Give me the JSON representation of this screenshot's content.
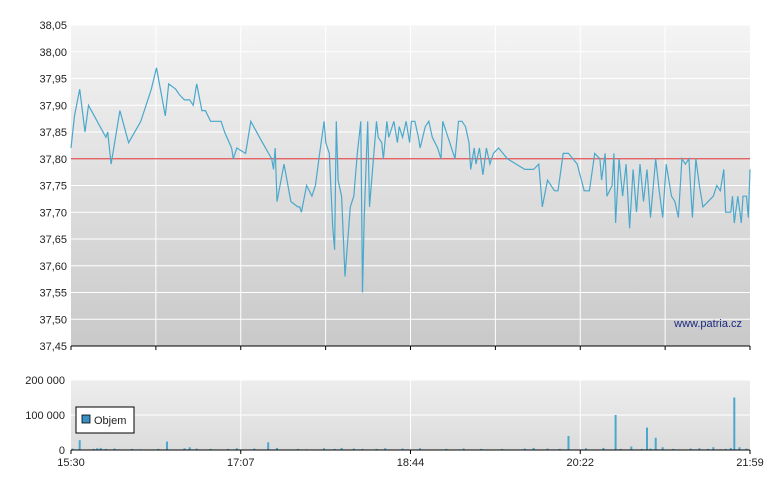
{
  "watermark": "www.patria.cz",
  "colors": {
    "price_line": "#4aa8cc",
    "reference_line": "#e05050",
    "volume_bar": "#4aa8cc",
    "legend_swatch": "#3b8fc4",
    "plot_bg_top": "#f4f4f4",
    "plot_bg_bottom": "#c9c9c9",
    "grid": "#ffffff"
  },
  "chart_data": [
    {
      "type": "line",
      "title": "",
      "xlabel": "",
      "ylabel": "",
      "ylim": [
        37.45,
        38.05
      ],
      "y_ticks": [
        "38,05",
        "38,00",
        "37,95",
        "37,90",
        "37,85",
        "37,80",
        "37,75",
        "37,70",
        "37,65",
        "37,60",
        "37,55",
        "37,50",
        "37,45"
      ],
      "x_range_minutes": [
        "15:30",
        "21:59"
      ],
      "reference_line": 37.8,
      "grid": true,
      "points": [
        [
          "15:30",
          37.82
        ],
        [
          "15:32",
          37.88
        ],
        [
          "15:35",
          37.93
        ],
        [
          "15:38",
          37.85
        ],
        [
          "15:40",
          37.9
        ],
        [
          "15:45",
          37.87
        ],
        [
          "15:50",
          37.84
        ],
        [
          "15:51",
          37.85
        ],
        [
          "15:53",
          37.79
        ],
        [
          "15:58",
          37.89
        ],
        [
          "16:03",
          37.83
        ],
        [
          "16:10",
          37.87
        ],
        [
          "16:16",
          37.93
        ],
        [
          "16:19",
          37.97
        ],
        [
          "16:24",
          37.88
        ],
        [
          "16:26",
          37.94
        ],
        [
          "16:30",
          37.93
        ],
        [
          "16:32",
          37.92
        ],
        [
          "16:35",
          37.91
        ],
        [
          "16:38",
          37.91
        ],
        [
          "16:40",
          37.9
        ],
        [
          "16:42",
          37.94
        ],
        [
          "16:45",
          37.89
        ],
        [
          "16:47",
          37.89
        ],
        [
          "16:50",
          37.87
        ],
        [
          "16:56",
          37.87
        ],
        [
          "16:58",
          37.85
        ],
        [
          "17:02",
          37.82
        ],
        [
          "17:03",
          37.8
        ],
        [
          "17:05",
          37.82
        ],
        [
          "17:10",
          37.81
        ],
        [
          "17:13",
          37.87
        ],
        [
          "17:18",
          37.84
        ],
        [
          "17:25",
          37.8
        ],
        [
          "17:26",
          37.78
        ],
        [
          "17:27",
          37.82
        ],
        [
          "17:28",
          37.72
        ],
        [
          "17:32",
          37.79
        ],
        [
          "17:36",
          37.72
        ],
        [
          "17:40",
          37.71
        ],
        [
          "17:41",
          37.71
        ],
        [
          "17:42",
          37.7
        ],
        [
          "17:45",
          37.75
        ],
        [
          "17:48",
          37.73
        ],
        [
          "17:50",
          37.75
        ],
        [
          "17:52",
          37.8
        ],
        [
          "17:55",
          37.87
        ],
        [
          "17:56",
          37.83
        ],
        [
          "17:58",
          37.81
        ],
        [
          "18:00",
          37.67
        ],
        [
          "18:01",
          37.63
        ],
        [
          "18:02",
          37.87
        ],
        [
          "18:03",
          37.76
        ],
        [
          "18:05",
          37.73
        ],
        [
          "18:07",
          37.58
        ],
        [
          "18:10",
          37.71
        ],
        [
          "18:12",
          37.73
        ],
        [
          "18:14",
          37.81
        ],
        [
          "18:16",
          37.87
        ],
        [
          "18:17",
          37.55
        ],
        [
          "18:18",
          37.69
        ],
        [
          "18:20",
          37.87
        ],
        [
          "18:21",
          37.71
        ],
        [
          "18:23",
          37.79
        ],
        [
          "18:25",
          37.87
        ],
        [
          "18:26",
          37.84
        ],
        [
          "18:28",
          37.83
        ],
        [
          "18:29",
          37.8
        ],
        [
          "18:31",
          37.87
        ],
        [
          "18:32",
          37.84
        ],
        [
          "18:34",
          37.86
        ],
        [
          "18:35",
          37.87
        ],
        [
          "18:37",
          37.83
        ],
        [
          "18:38",
          37.86
        ],
        [
          "18:40",
          37.84
        ],
        [
          "18:42",
          37.87
        ],
        [
          "18:44",
          37.83
        ],
        [
          "18:45",
          37.87
        ],
        [
          "18:47",
          37.87
        ],
        [
          "18:49",
          37.84
        ],
        [
          "18:50",
          37.82
        ],
        [
          "18:53",
          37.86
        ],
        [
          "18:55",
          37.87
        ],
        [
          "18:57",
          37.84
        ],
        [
          "19:00",
          37.82
        ],
        [
          "19:02",
          37.8
        ],
        [
          "19:03",
          37.87
        ],
        [
          "19:05",
          37.85
        ],
        [
          "19:10",
          37.8
        ],
        [
          "19:12",
          37.87
        ],
        [
          "19:14",
          37.87
        ],
        [
          "19:16",
          37.86
        ],
        [
          "19:18",
          37.83
        ],
        [
          "19:19",
          37.78
        ],
        [
          "19:21",
          37.82
        ],
        [
          "19:22",
          37.79
        ],
        [
          "19:24",
          37.82
        ],
        [
          "19:26",
          37.77
        ],
        [
          "19:28",
          37.82
        ],
        [
          "19:30",
          37.79
        ],
        [
          "19:32",
          37.81
        ],
        [
          "19:35",
          37.82
        ],
        [
          "19:40",
          37.8
        ],
        [
          "19:45",
          37.79
        ],
        [
          "19:50",
          37.78
        ],
        [
          "19:55",
          37.78
        ],
        [
          "19:58",
          37.79
        ],
        [
          "20:00",
          37.71
        ],
        [
          "20:03",
          37.76
        ],
        [
          "20:07",
          37.74
        ],
        [
          "20:09",
          37.74
        ],
        [
          "20:12",
          37.81
        ],
        [
          "20:15",
          37.81
        ],
        [
          "20:20",
          37.79
        ],
        [
          "20:24",
          37.74
        ],
        [
          "20:27",
          37.74
        ],
        [
          "20:30",
          37.81
        ],
        [
          "20:33",
          37.8
        ],
        [
          "20:34",
          37.76
        ],
        [
          "20:36",
          37.81
        ],
        [
          "20:37",
          37.73
        ],
        [
          "20:40",
          37.75
        ],
        [
          "20:41",
          37.81
        ],
        [
          "20:42",
          37.68
        ],
        [
          "20:44",
          37.8
        ],
        [
          "20:46",
          37.73
        ],
        [
          "20:48",
          37.79
        ],
        [
          "20:50",
          37.67
        ],
        [
          "20:52",
          37.78
        ],
        [
          "20:54",
          37.7
        ],
        [
          "20:56",
          37.79
        ],
        [
          "20:58",
          37.72
        ],
        [
          "21:00",
          37.78
        ],
        [
          "21:02",
          37.69
        ],
        [
          "21:05",
          37.8
        ],
        [
          "21:07",
          37.74
        ],
        [
          "21:09",
          37.69
        ],
        [
          "21:11",
          37.79
        ],
        [
          "21:14",
          37.73
        ],
        [
          "21:16",
          37.72
        ],
        [
          "21:18",
          37.69
        ],
        [
          "21:20",
          37.8
        ],
        [
          "21:22",
          37.79
        ],
        [
          "21:24",
          37.8
        ],
        [
          "21:26",
          37.69
        ],
        [
          "21:28",
          37.8
        ],
        [
          "21:30",
          37.75
        ],
        [
          "21:32",
          37.71
        ],
        [
          "21:35",
          37.72
        ],
        [
          "21:38",
          37.73
        ],
        [
          "21:40",
          37.75
        ],
        [
          "21:42",
          37.74
        ],
        [
          "21:44",
          37.78
        ],
        [
          "21:45",
          37.7
        ],
        [
          "21:48",
          37.7
        ],
        [
          "21:49",
          37.73
        ],
        [
          "21:50",
          37.68
        ],
        [
          "21:52",
          37.73
        ],
        [
          "21:54",
          37.68
        ],
        [
          "21:55",
          37.73
        ],
        [
          "21:57",
          37.73
        ],
        [
          "21:58",
          37.69
        ],
        [
          "21:59",
          37.78
        ]
      ]
    },
    {
      "type": "bar",
      "title": "",
      "xlabel": "",
      "ylabel": "",
      "ylim": [
        0,
        200000
      ],
      "y_ticks": [
        "200 000",
        "100 000",
        "0"
      ],
      "x_tick_labels": [
        "15:30",
        "17:07",
        "18:44",
        "20:22",
        "21:59"
      ],
      "x_range_minutes": [
        "15:30",
        "21:59"
      ],
      "grid": true,
      "legend": {
        "label": "Objem",
        "placement": "left"
      },
      "bars": [
        [
          "15:31",
          4000
        ],
        [
          "15:35",
          28000
        ],
        [
          "15:43",
          3000
        ],
        [
          "15:45",
          5000
        ],
        [
          "15:47",
          6000
        ],
        [
          "15:50",
          3000
        ],
        [
          "15:55",
          4000
        ],
        [
          "16:05",
          3000
        ],
        [
          "16:10",
          2000
        ],
        [
          "16:20",
          3000
        ],
        [
          "16:25",
          24000
        ],
        [
          "16:35",
          5000
        ],
        [
          "16:38",
          8000
        ],
        [
          "16:42",
          4000
        ],
        [
          "16:50",
          3000
        ],
        [
          "17:00",
          3000
        ],
        [
          "17:05",
          5000
        ],
        [
          "17:15",
          4000
        ],
        [
          "17:23",
          22000
        ],
        [
          "17:28",
          6000
        ],
        [
          "17:40",
          3000
        ],
        [
          "17:45",
          2000
        ],
        [
          "17:55",
          5000
        ],
        [
          "18:01",
          3000
        ],
        [
          "18:05",
          6000
        ],
        [
          "18:12",
          4000
        ],
        [
          "18:17",
          3000
        ],
        [
          "18:25",
          3000
        ],
        [
          "18:30",
          5000
        ],
        [
          "18:40",
          4000
        ],
        [
          "18:50",
          5000
        ],
        [
          "19:05",
          3000
        ],
        [
          "19:15",
          4000
        ],
        [
          "19:25",
          3000
        ],
        [
          "19:37",
          3000
        ],
        [
          "19:50",
          4000
        ],
        [
          "19:55",
          6000
        ],
        [
          "20:03",
          4000
        ],
        [
          "20:10",
          3000
        ],
        [
          "20:15",
          40000
        ],
        [
          "20:25",
          5000
        ],
        [
          "20:35",
          6000
        ],
        [
          "20:42",
          100000
        ],
        [
          "20:45",
          3000
        ],
        [
          "20:51",
          10000
        ],
        [
          "20:57",
          3000
        ],
        [
          "21:00",
          64000
        ],
        [
          "21:02",
          4000
        ],
        [
          "21:05",
          35000
        ],
        [
          "21:09",
          8000
        ],
        [
          "21:15",
          3000
        ],
        [
          "21:25",
          4000
        ],
        [
          "21:30",
          5000
        ],
        [
          "21:35",
          3000
        ],
        [
          "21:38",
          8000
        ],
        [
          "21:42",
          2000
        ],
        [
          "21:45",
          3000
        ],
        [
          "21:48",
          6000
        ],
        [
          "21:50",
          150000
        ],
        [
          "21:53",
          8000
        ],
        [
          "21:57",
          4000
        ]
      ]
    }
  ]
}
